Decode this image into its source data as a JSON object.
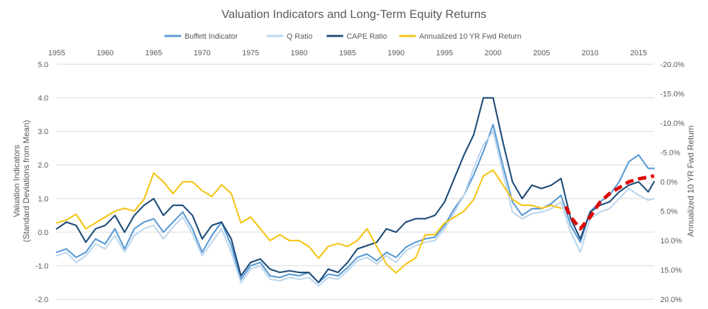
{
  "chart_data": {
    "type": "line",
    "title": "Valuation Indicators and Long-Term Equity Returns",
    "ylabel_left": [
      "Valuation Indicators",
      "(Standard Deviations from Mean)"
    ],
    "ylabel_right": "Annualized 10 YR Fwd Return",
    "x_ticks": [
      1955,
      1960,
      1965,
      1970,
      1975,
      1980,
      1985,
      1990,
      1995,
      2000,
      2005,
      2010,
      2015
    ],
    "x_tick_labels": [
      "1955",
      "1960",
      "1965",
      "1970",
      "1975",
      "1980",
      "1985",
      "1990",
      "1995",
      "2000",
      "2005",
      "2010",
      "2015"
    ],
    "xlim": [
      1955,
      2016.6
    ],
    "ylim_left": [
      -2,
      5
    ],
    "left_ticks": [
      5,
      4,
      3,
      2,
      1,
      0,
      -1,
      -2
    ],
    "left_tick_labels": [
      "5.0",
      "4.0",
      "3.0",
      "2.0",
      "1.0",
      "0.0",
      "-1.0",
      "-2.0"
    ],
    "ylim_right": [
      20,
      -20
    ],
    "right_ticks": [
      -20,
      -15,
      -10,
      -5,
      0,
      5,
      10,
      15,
      20
    ],
    "right_tick_labels": [
      "-20.0%",
      "-15.0%",
      "-10.0%",
      "-5.0%",
      "0.0%",
      "5.0%",
      "10.0%",
      "15.0%",
      "20.0%"
    ],
    "grid": true,
    "legend_position": "top",
    "series": [
      {
        "name": "Buffett Indicator",
        "axis": "left",
        "color": "#5b9bd5",
        "points": [
          [
            1955,
            -0.6
          ],
          [
            1956,
            -0.5
          ],
          [
            1957,
            -0.75
          ],
          [
            1958,
            -0.6
          ],
          [
            1959,
            -0.2
          ],
          [
            1960,
            -0.35
          ],
          [
            1961,
            0.1
          ],
          [
            1962,
            -0.5
          ],
          [
            1963,
            0.1
          ],
          [
            1964,
            0.3
          ],
          [
            1965,
            0.4
          ],
          [
            1966,
            0.0
          ],
          [
            1967,
            0.3
          ],
          [
            1968,
            0.6
          ],
          [
            1969,
            0.1
          ],
          [
            1970,
            -0.6
          ],
          [
            1971,
            -0.1
          ],
          [
            1972,
            0.3
          ],
          [
            1973,
            -0.4
          ],
          [
            1974,
            -1.4
          ],
          [
            1975,
            -1.0
          ],
          [
            1976,
            -0.9
          ],
          [
            1977,
            -1.3
          ],
          [
            1978,
            -1.35
          ],
          [
            1979,
            -1.25
          ],
          [
            1980,
            -1.3
          ],
          [
            1981,
            -1.2
          ],
          [
            1982,
            -1.5
          ],
          [
            1983,
            -1.25
          ],
          [
            1984,
            -1.3
          ],
          [
            1985,
            -1.05
          ],
          [
            1986,
            -0.75
          ],
          [
            1987,
            -0.65
          ],
          [
            1988,
            -0.85
          ],
          [
            1989,
            -0.6
          ],
          [
            1990,
            -0.75
          ],
          [
            1991,
            -0.45
          ],
          [
            1992,
            -0.3
          ],
          [
            1993,
            -0.2
          ],
          [
            1994,
            -0.15
          ],
          [
            1995,
            0.2
          ],
          [
            1996,
            0.7
          ],
          [
            1997,
            1.1
          ],
          [
            1998,
            1.7
          ],
          [
            1999,
            2.4
          ],
          [
            2000,
            3.2
          ],
          [
            2001,
            2.0
          ],
          [
            2002,
            0.9
          ],
          [
            2003,
            0.5
          ],
          [
            2004,
            0.7
          ],
          [
            2005,
            0.7
          ],
          [
            2006,
            0.85
          ],
          [
            2007,
            1.1
          ],
          [
            2008,
            0.2
          ],
          [
            2009,
            -0.3
          ],
          [
            2010,
            0.6
          ],
          [
            2011,
            0.9
          ],
          [
            2012,
            1.1
          ],
          [
            2013,
            1.5
          ],
          [
            2014,
            2.1
          ],
          [
            2015,
            2.3
          ],
          [
            2016,
            1.9
          ],
          [
            2016.6,
            1.9
          ]
        ]
      },
      {
        "name": "Q Ratio",
        "axis": "left",
        "color": "#bdd7ee",
        "points": [
          [
            1955,
            -0.7
          ],
          [
            1956,
            -0.6
          ],
          [
            1957,
            -0.9
          ],
          [
            1958,
            -0.7
          ],
          [
            1959,
            -0.35
          ],
          [
            1960,
            -0.5
          ],
          [
            1961,
            -0.1
          ],
          [
            1962,
            -0.6
          ],
          [
            1963,
            -0.1
          ],
          [
            1964,
            0.1
          ],
          [
            1965,
            0.2
          ],
          [
            1966,
            -0.2
          ],
          [
            1967,
            0.15
          ],
          [
            1968,
            0.45
          ],
          [
            1969,
            -0.05
          ],
          [
            1970,
            -0.7
          ],
          [
            1971,
            -0.3
          ],
          [
            1972,
            0.1
          ],
          [
            1973,
            -0.6
          ],
          [
            1974,
            -1.5
          ],
          [
            1975,
            -1.1
          ],
          [
            1976,
            -1.0
          ],
          [
            1977,
            -1.4
          ],
          [
            1978,
            -1.45
          ],
          [
            1979,
            -1.35
          ],
          [
            1980,
            -1.4
          ],
          [
            1981,
            -1.35
          ],
          [
            1982,
            -1.6
          ],
          [
            1983,
            -1.35
          ],
          [
            1984,
            -1.4
          ],
          [
            1985,
            -1.15
          ],
          [
            1986,
            -0.85
          ],
          [
            1987,
            -0.75
          ],
          [
            1988,
            -0.95
          ],
          [
            1989,
            -0.7
          ],
          [
            1990,
            -0.9
          ],
          [
            1991,
            -0.55
          ],
          [
            1992,
            -0.4
          ],
          [
            1993,
            -0.3
          ],
          [
            1994,
            -0.25
          ],
          [
            1995,
            0.1
          ],
          [
            1996,
            0.6
          ],
          [
            1997,
            1.1
          ],
          [
            1998,
            1.9
          ],
          [
            1999,
            2.6
          ],
          [
            2000,
            3.0
          ],
          [
            2001,
            1.8
          ],
          [
            2002,
            0.6
          ],
          [
            2003,
            0.4
          ],
          [
            2004,
            0.55
          ],
          [
            2005,
            0.6
          ],
          [
            2006,
            0.7
          ],
          [
            2007,
            0.9
          ],
          [
            2008,
            0.0
          ],
          [
            2009,
            -0.6
          ],
          [
            2010,
            0.4
          ],
          [
            2011,
            0.6
          ],
          [
            2012,
            0.7
          ],
          [
            2013,
            1.0
          ],
          [
            2014,
            1.3
          ],
          [
            2015,
            1.1
          ],
          [
            2016,
            0.95
          ],
          [
            2016.6,
            1.0
          ]
        ]
      },
      {
        "name": "CAPE Ratio",
        "axis": "left",
        "color": "#1f4e79",
        "points": [
          [
            1955,
            0.1
          ],
          [
            1956,
            0.3
          ],
          [
            1957,
            0.2
          ],
          [
            1958,
            -0.3
          ],
          [
            1959,
            0.1
          ],
          [
            1960,
            0.2
          ],
          [
            1961,
            0.5
          ],
          [
            1962,
            0.0
          ],
          [
            1963,
            0.5
          ],
          [
            1964,
            0.8
          ],
          [
            1965,
            1.0
          ],
          [
            1966,
            0.5
          ],
          [
            1967,
            0.8
          ],
          [
            1968,
            0.8
          ],
          [
            1969,
            0.5
          ],
          [
            1970,
            -0.2
          ],
          [
            1971,
            0.2
          ],
          [
            1972,
            0.3
          ],
          [
            1973,
            -0.2
          ],
          [
            1974,
            -1.3
          ],
          [
            1975,
            -0.9
          ],
          [
            1976,
            -0.8
          ],
          [
            1977,
            -1.1
          ],
          [
            1978,
            -1.2
          ],
          [
            1979,
            -1.15
          ],
          [
            1980,
            -1.2
          ],
          [
            1981,
            -1.2
          ],
          [
            1982,
            -1.5
          ],
          [
            1983,
            -1.1
          ],
          [
            1984,
            -1.2
          ],
          [
            1985,
            -0.9
          ],
          [
            1986,
            -0.5
          ],
          [
            1987,
            -0.4
          ],
          [
            1988,
            -0.3
          ],
          [
            1989,
            0.1
          ],
          [
            1990,
            0.0
          ],
          [
            1991,
            0.3
          ],
          [
            1992,
            0.4
          ],
          [
            1993,
            0.4
          ],
          [
            1994,
            0.5
          ],
          [
            1995,
            0.9
          ],
          [
            1996,
            1.6
          ],
          [
            1997,
            2.3
          ],
          [
            1998,
            2.9
          ],
          [
            1999,
            4.0
          ],
          [
            2000,
            4.0
          ],
          [
            2001,
            2.7
          ],
          [
            2002,
            1.5
          ],
          [
            2003,
            1.0
          ],
          [
            2004,
            1.4
          ],
          [
            2005,
            1.3
          ],
          [
            2006,
            1.4
          ],
          [
            2007,
            1.6
          ],
          [
            2008,
            0.4
          ],
          [
            2009,
            -0.2
          ],
          [
            2010,
            0.6
          ],
          [
            2011,
            0.8
          ],
          [
            2012,
            0.9
          ],
          [
            2013,
            1.2
          ],
          [
            2014,
            1.4
          ],
          [
            2015,
            1.5
          ],
          [
            2016,
            1.2
          ],
          [
            2016.6,
            1.5
          ]
        ]
      },
      {
        "name": "Annualized 10 YR Fwd Return",
        "axis": "right",
        "color": "#f5c518",
        "points": [
          [
            1955,
            7
          ],
          [
            1956,
            6.5
          ],
          [
            1957,
            5.5
          ],
          [
            1958,
            8
          ],
          [
            1959,
            7
          ],
          [
            1960,
            6
          ],
          [
            1961,
            5
          ],
          [
            1962,
            4.5
          ],
          [
            1963,
            5
          ],
          [
            1964,
            3
          ],
          [
            1965,
            -1.5
          ],
          [
            1966,
            0
          ],
          [
            1967,
            2
          ],
          [
            1968,
            0
          ],
          [
            1969,
            0
          ],
          [
            1970,
            1.5
          ],
          [
            1971,
            2.5
          ],
          [
            1972,
            0.5
          ],
          [
            1973,
            2
          ],
          [
            1974,
            7
          ],
          [
            1975,
            6
          ],
          [
            1976,
            8
          ],
          [
            1977,
            10
          ],
          [
            1978,
            9
          ],
          [
            1979,
            10
          ],
          [
            1980,
            10
          ],
          [
            1981,
            11
          ],
          [
            1982,
            13
          ],
          [
            1983,
            11
          ],
          [
            1984,
            10.5
          ],
          [
            1985,
            11
          ],
          [
            1986,
            10
          ],
          [
            1987,
            8
          ],
          [
            1988,
            11
          ],
          [
            1989,
            14
          ],
          [
            1990,
            15.5
          ],
          [
            1991,
            14
          ],
          [
            1992,
            13
          ],
          [
            1993,
            9
          ],
          [
            1994,
            9
          ],
          [
            1995,
            7
          ],
          [
            1996,
            6
          ],
          [
            1997,
            5
          ],
          [
            1998,
            3
          ],
          [
            1999,
            -1
          ],
          [
            2000,
            -2
          ],
          [
            2001,
            0.5
          ],
          [
            2002,
            3
          ],
          [
            2003,
            4
          ],
          [
            2004,
            4
          ],
          [
            2005,
            4.5
          ],
          [
            2006,
            4
          ],
          [
            2007,
            4.5
          ]
        ]
      },
      {
        "name": "",
        "axis": "right",
        "color": "#e00000",
        "style": "dashed",
        "points": [
          [
            2007.5,
            4.2
          ],
          [
            2008,
            6
          ],
          [
            2009,
            8
          ],
          [
            2010,
            6
          ],
          [
            2011,
            3.5
          ],
          [
            2012,
            2
          ],
          [
            2013,
            1
          ],
          [
            2014,
            0
          ],
          [
            2015,
            -0.5
          ],
          [
            2016,
            -0.8
          ],
          [
            2016.6,
            -1
          ]
        ]
      }
    ]
  }
}
